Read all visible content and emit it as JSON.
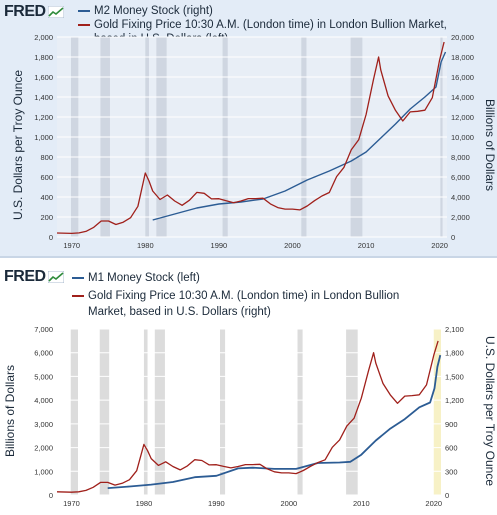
{
  "colors": {
    "gold": "#a0201b",
    "money": "#2c5c94",
    "recession_top": "#cfd6e1",
    "recession_bottom": "#dcdcdc",
    "highlight": "#f7f1c6",
    "panel_top_bg": "#e3ecf7",
    "plot_top_bg": "#e8eef6"
  },
  "top": {
    "logo": "FRED",
    "legend": [
      {
        "label": "M2 Money Stock (right)",
        "color": "#2c5c94"
      },
      {
        "label": "Gold Fixing Price 10:30 A.M. (London time) in London Bullion Market,",
        "color": "#a0201b"
      },
      {
        "label": "based in U.S. Dollars (left)",
        "color": ""
      }
    ],
    "y_left_label": "U.S. Dollars per Troy Ounce",
    "y_right_label": "Billions of Dollars"
  },
  "bottom": {
    "logo": "FRED",
    "legend": [
      {
        "label": "M1 Money Stock (left)",
        "color": "#2c5c94"
      },
      {
        "label": "Gold Fixing Price 10:30 A.M. (London time) in London Bullion",
        "color": "#a0201b"
      },
      {
        "label": "Market, based in U.S. Dollars (right)",
        "color": ""
      }
    ],
    "y_left_label": "Billions of Dollars",
    "y_right_label": "U.S. Dollars per Troy Ounce"
  },
  "chart_data": [
    {
      "type": "line",
      "x_ticks": [
        "1970",
        "1980",
        "1990",
        "2000",
        "2010",
        "2020"
      ],
      "xlim": [
        1968,
        2021
      ],
      "y_left_ticks": [
        "0",
        "200",
        "400",
        "600",
        "800",
        "1,000",
        "1,200",
        "1,400",
        "1,600",
        "1,800",
        "2,000"
      ],
      "y_left_lim": [
        0,
        2000
      ],
      "y_right_ticks": [
        "0",
        "2,000",
        "4,000",
        "6,000",
        "8,000",
        "10,000",
        "12,000",
        "14,000",
        "16,000",
        "18,000",
        "20,000"
      ],
      "y_right_lim": [
        0,
        20000
      ],
      "recessions": [
        [
          1969.9,
          1970.9
        ],
        [
          1973.9,
          1975.2
        ],
        [
          1980.0,
          1980.5
        ],
        [
          1981.5,
          1982.9
        ],
        [
          1990.5,
          1991.2
        ],
        [
          2001.2,
          2001.9
        ],
        [
          2007.9,
          2009.5
        ],
        [
          2020.1,
          2020.4
        ]
      ],
      "series": [
        {
          "name": "M2 Money Stock (right)",
          "axis": "right",
          "x": [
            1981,
            1984,
            1987,
            1990,
            1993,
            1996,
            1999,
            2002,
            2005,
            2008,
            2010,
            2012,
            2014,
            2016,
            2018,
            2019.5,
            2020.2,
            2020.8
          ],
          "y": [
            1700,
            2300,
            2900,
            3300,
            3500,
            3800,
            4600,
            5700,
            6600,
            7600,
            8500,
            9900,
            11300,
            12800,
            14000,
            15000,
            17500,
            18500
          ]
        },
        {
          "name": "Gold Fixing Price 10:30 A.M. (London time) in London Bullion Market, based in U.S. Dollars (left)",
          "axis": "left",
          "x": [
            1968,
            1970,
            1971,
            1972,
            1973,
            1974,
            1975,
            1976,
            1977,
            1978,
            1979,
            1980,
            1980.5,
            1981,
            1982,
            1983,
            1984,
            1985,
            1986,
            1987,
            1988,
            1989,
            1990,
            1991,
            1992,
            1993,
            1994,
            1995,
            1996,
            1997,
            1998,
            1999,
            2000,
            2001,
            2002,
            2003,
            2004,
            2005,
            2006,
            2007,
            2008,
            2009,
            2010,
            2011,
            2011.7,
            2012,
            2013,
            2014,
            2015,
            2016,
            2017,
            2018,
            2019,
            2020,
            2020.6
          ],
          "y": [
            40,
            36,
            41,
            58,
            97,
            160,
            160,
            125,
            148,
            193,
            307,
            640,
            560,
            460,
            375,
            420,
            360,
            317,
            368,
            446,
            437,
            381,
            383,
            362,
            343,
            360,
            384,
            384,
            388,
            331,
            294,
            279,
            279,
            271,
            310,
            363,
            410,
            445,
            604,
            697,
            872,
            972,
            1225,
            1571,
            1800,
            1669,
            1411,
            1266,
            1160,
            1251,
            1257,
            1268,
            1393,
            1770,
            1950
          ]
        }
      ]
    },
    {
      "type": "line",
      "x_ticks": [
        "1970",
        "1980",
        "1990",
        "2000",
        "2010",
        "2020"
      ],
      "xlim": [
        1968,
        2021
      ],
      "y_left_ticks": [
        "0",
        "1,000",
        "2,000",
        "3,000",
        "4,000",
        "5,000",
        "6,000",
        "7,000"
      ],
      "y_left_lim": [
        0,
        7000
      ],
      "y_right_ticks": [
        "0",
        "300",
        "600",
        "900",
        "1,200",
        "1,500",
        "1,800",
        "2,100"
      ],
      "y_right_lim": [
        0,
        2100
      ],
      "recessions": [
        [
          1969.9,
          1970.9
        ],
        [
          1973.9,
          1975.2
        ],
        [
          1980.0,
          1980.5
        ],
        [
          1981.5,
          1982.9
        ],
        [
          1990.5,
          1991.2
        ],
        [
          2001.2,
          2001.9
        ],
        [
          2007.9,
          2009.5
        ]
      ],
      "highlight": [
        2020.0,
        2021.0
      ],
      "series": [
        {
          "name": "M1 Money Stock (left)",
          "axis": "left",
          "x": [
            1975,
            1978,
            1981,
            1984,
            1987,
            1990,
            1993,
            1995,
            1998,
            2001,
            2004,
            2007,
            2008.5,
            2010,
            2012,
            2014,
            2016,
            2018,
            2019.5,
            2020.1,
            2020.5,
            2020.9
          ],
          "y": [
            290,
            360,
            440,
            550,
            750,
            810,
            1120,
            1150,
            1100,
            1100,
            1350,
            1370,
            1400,
            1700,
            2300,
            2800,
            3200,
            3700,
            3900,
            4500,
            5400,
            5900
          ]
        },
        {
          "name": "Gold Fixing Price 10:30 A.M. (London time) in London Bullion Market, based in U.S. Dollars (right)",
          "axis": "right",
          "x": [
            1968,
            1970,
            1971,
            1972,
            1973,
            1974,
            1975,
            1976,
            1977,
            1978,
            1979,
            1980,
            1980.5,
            1981,
            1982,
            1983,
            1984,
            1985,
            1986,
            1987,
            1988,
            1989,
            1990,
            1991,
            1992,
            1993,
            1994,
            1995,
            1996,
            1997,
            1998,
            1999,
            2000,
            2001,
            2002,
            2003,
            2004,
            2005,
            2006,
            2007,
            2008,
            2009,
            2010,
            2011,
            2011.7,
            2012,
            2013,
            2014,
            2015,
            2016,
            2017,
            2018,
            2019,
            2020,
            2020.6
          ],
          "y": [
            40,
            36,
            41,
            58,
            97,
            160,
            160,
            125,
            148,
            193,
            307,
            640,
            560,
            460,
            375,
            420,
            360,
            317,
            368,
            446,
            437,
            381,
            383,
            362,
            343,
            360,
            384,
            384,
            388,
            331,
            294,
            279,
            279,
            271,
            310,
            363,
            410,
            445,
            604,
            697,
            872,
            972,
            1225,
            1571,
            1800,
            1669,
            1411,
            1266,
            1160,
            1251,
            1257,
            1268,
            1393,
            1770,
            1950
          ]
        }
      ]
    }
  ]
}
